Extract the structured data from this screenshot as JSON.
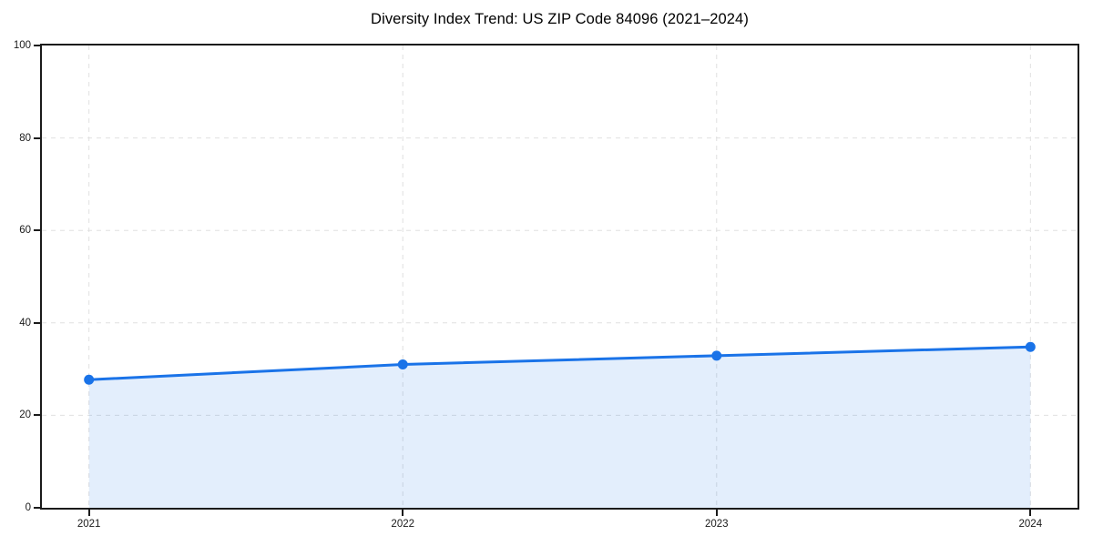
{
  "chart_data": {
    "type": "line",
    "title": "Diversity Index Trend: US ZIP Code 84096 (2021–2024)",
    "x": [
      2021,
      2022,
      2023,
      2024
    ],
    "series": [
      {
        "name": "Diversity Index",
        "values": [
          27.7,
          31.0,
          32.9,
          34.8
        ]
      }
    ],
    "xlabel": "",
    "ylabel": "",
    "xlim": [
      2020.85,
      2024.15
    ],
    "ylim": [
      0,
      100
    ],
    "xticks": [
      "2021",
      "2022",
      "2023",
      "2024"
    ],
    "xtick_positions": [
      2021,
      2022,
      2023,
      2024
    ],
    "yticks": [
      "0",
      "20",
      "40",
      "60",
      "80",
      "100"
    ],
    "ytick_positions": [
      0,
      20,
      40,
      60,
      80,
      100
    ],
    "grid": true,
    "grid_style": "dashed",
    "grid_color": "#e0e0e0",
    "legend": false,
    "line_color": "#1a73e8",
    "marker": "circle",
    "marker_color": "#1a73e8",
    "fill_color": "#1a73e8",
    "fill_opacity": 0.12,
    "spine_color": "#1b1b1b",
    "background_color": "#ffffff"
  }
}
